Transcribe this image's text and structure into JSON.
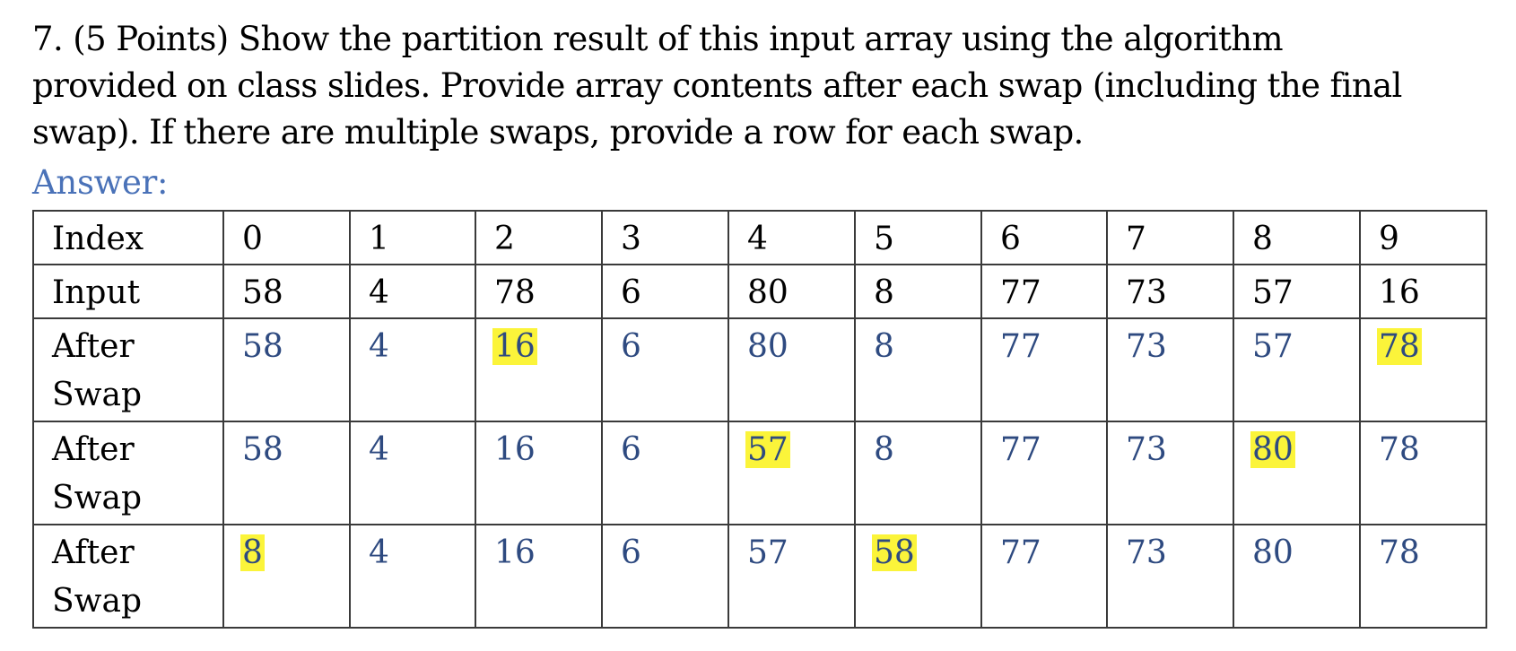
{
  "question": {
    "lines": [
      "7. (5 Points) Show the partition result of this input array using the algorithm",
      "provided on class slides.  Provide array contents after each swap (including the final",
      "swap).  If there are multiple swaps, provide a row for each swap."
    ]
  },
  "answer_label": "Answer:",
  "colors": {
    "answer_label": "#4a72b8",
    "answer_values": "#2e4a80",
    "highlight": "#fbf43a",
    "border": "#3a3a3a"
  },
  "table": {
    "rows": [
      {
        "label": "Index",
        "cells": [
          {
            "value": "0",
            "highlight": false
          },
          {
            "value": "1",
            "highlight": false
          },
          {
            "value": "2",
            "highlight": false
          },
          {
            "value": "3",
            "highlight": false
          },
          {
            "value": "4",
            "highlight": false
          },
          {
            "value": "5",
            "highlight": false
          },
          {
            "value": "6",
            "highlight": false
          },
          {
            "value": "7",
            "highlight": false
          },
          {
            "value": "8",
            "highlight": false
          },
          {
            "value": "9",
            "highlight": false
          }
        ]
      },
      {
        "label": "Input",
        "cells": [
          {
            "value": "58",
            "highlight": false
          },
          {
            "value": "4",
            "highlight": false
          },
          {
            "value": "78",
            "highlight": false
          },
          {
            "value": "6",
            "highlight": false
          },
          {
            "value": "80",
            "highlight": false
          },
          {
            "value": "8",
            "highlight": false
          },
          {
            "value": "77",
            "highlight": false
          },
          {
            "value": "73",
            "highlight": false
          },
          {
            "value": "57",
            "highlight": false
          },
          {
            "value": "16",
            "highlight": false
          }
        ]
      },
      {
        "label": "After Swap",
        "cells": [
          {
            "value": "58",
            "highlight": false
          },
          {
            "value": "4",
            "highlight": false
          },
          {
            "value": "16",
            "highlight": true
          },
          {
            "value": "6",
            "highlight": false
          },
          {
            "value": "80",
            "highlight": false
          },
          {
            "value": "8",
            "highlight": false
          },
          {
            "value": "77",
            "highlight": false
          },
          {
            "value": "73",
            "highlight": false
          },
          {
            "value": "57",
            "highlight": false
          },
          {
            "value": "78",
            "highlight": true
          }
        ]
      },
      {
        "label": "After Swap",
        "cells": [
          {
            "value": "58",
            "highlight": false
          },
          {
            "value": "4",
            "highlight": false
          },
          {
            "value": "16",
            "highlight": false
          },
          {
            "value": "6",
            "highlight": false
          },
          {
            "value": "57",
            "highlight": true
          },
          {
            "value": "8",
            "highlight": false
          },
          {
            "value": "77",
            "highlight": false
          },
          {
            "value": "73",
            "highlight": false
          },
          {
            "value": "80",
            "highlight": true
          },
          {
            "value": "78",
            "highlight": false
          }
        ]
      },
      {
        "label": "After Swap",
        "cells": [
          {
            "value": "8",
            "highlight": true
          },
          {
            "value": "4",
            "highlight": false
          },
          {
            "value": "16",
            "highlight": false
          },
          {
            "value": "6",
            "highlight": false
          },
          {
            "value": "57",
            "highlight": false
          },
          {
            "value": "58",
            "highlight": true
          },
          {
            "value": "77",
            "highlight": false
          },
          {
            "value": "73",
            "highlight": false
          },
          {
            "value": "80",
            "highlight": false
          },
          {
            "value": "78",
            "highlight": false
          }
        ]
      }
    ]
  }
}
